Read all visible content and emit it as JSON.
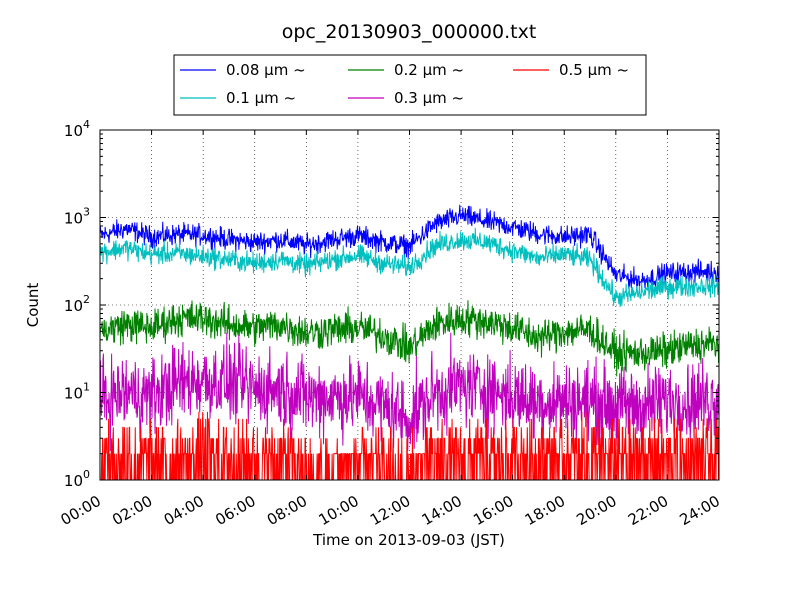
{
  "chart_data": {
    "type": "line",
    "title": "opc_20130903_000000.txt",
    "xlabel": "Time on 2013-09-03 (JST)",
    "ylabel": "Count",
    "x_ticks": [
      "00:00",
      "02:00",
      "04:00",
      "06:00",
      "08:00",
      "10:00",
      "12:00",
      "14:00",
      "16:00",
      "18:00",
      "20:00",
      "22:00",
      "24:00"
    ],
    "xlim_hours": [
      0,
      24
    ],
    "yscale": "log",
    "ylim": [
      1,
      10000
    ],
    "y_ticks": [
      {
        "base": "10",
        "exp": "0",
        "value": 1
      },
      {
        "base": "10",
        "exp": "1",
        "value": 10
      },
      {
        "base": "10",
        "exp": "2",
        "value": 100
      },
      {
        "base": "10",
        "exp": "3",
        "value": 1000
      },
      {
        "base": "10",
        "exp": "4",
        "value": 10000
      }
    ],
    "grid": true,
    "legend_position": "top-center (above plot)",
    "x_hours": [
      0,
      1,
      2,
      3,
      4,
      5,
      6,
      7,
      8,
      9,
      10,
      11,
      12,
      13,
      14,
      15,
      16,
      17,
      18,
      19,
      20,
      21,
      22,
      23,
      24
    ],
    "series": [
      {
        "name": "0.08 μm ~",
        "color": "#0000ff",
        "values": [
          620,
          750,
          600,
          640,
          630,
          560,
          520,
          560,
          480,
          560,
          620,
          520,
          470,
          850,
          1050,
          900,
          780,
          650,
          600,
          640,
          220,
          190,
          230,
          240,
          240
        ]
      },
      {
        "name": "0.1 μm ~",
        "color": "#00bfbf",
        "values": [
          400,
          450,
          380,
          390,
          360,
          330,
          300,
          330,
          280,
          330,
          370,
          300,
          270,
          480,
          560,
          520,
          420,
          340,
          380,
          330,
          120,
          140,
          160,
          165,
          165
        ]
      },
      {
        "name": "0.2 μm ~",
        "color": "#008000",
        "values": [
          50,
          60,
          55,
          70,
          70,
          60,
          55,
          60,
          48,
          52,
          55,
          45,
          32,
          60,
          70,
          65,
          55,
          42,
          50,
          52,
          28,
          28,
          30,
          35,
          36
        ]
      },
      {
        "name": "0.3 μm ~",
        "color": "#bf00bf",
        "values": [
          8,
          10,
          9,
          13,
          14,
          13,
          11,
          11,
          9,
          9,
          9,
          7,
          5,
          10,
          12,
          11,
          9,
          8,
          8,
          8,
          7,
          7,
          8,
          8,
          9
        ]
      },
      {
        "name": "0.5 μm ~",
        "color": "#ff0000",
        "values": [
          1.5,
          2,
          1.5,
          1.5,
          2,
          1.5,
          1.5,
          1.5,
          1.2,
          1.2,
          1.3,
          1.2,
          1.1,
          1.5,
          1.5,
          1.5,
          1.5,
          1.5,
          1.5,
          2,
          1.5,
          1.5,
          1.5,
          1.5,
          1.5
        ]
      }
    ]
  }
}
